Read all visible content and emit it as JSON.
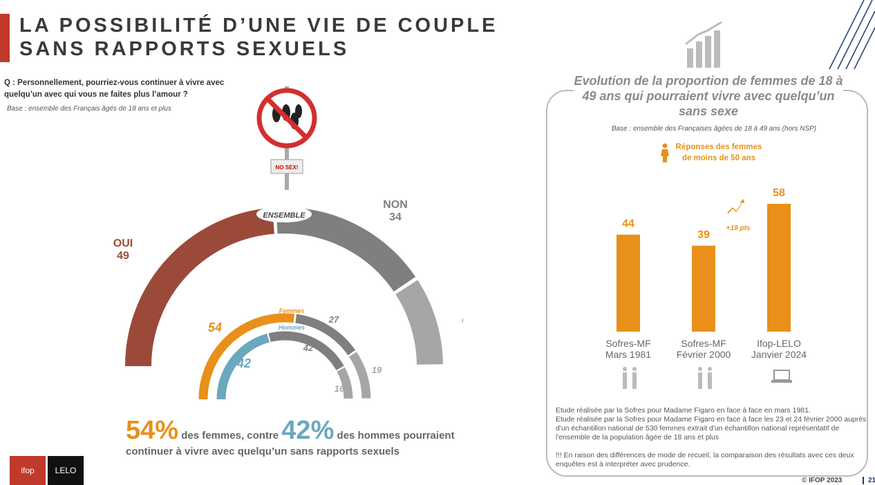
{
  "title": "LA POSSIBILITÉ D’UNE VIE DE COUPLE SANS RAPPORTS SEXUELS",
  "question": "Q : Personnellement, pourriez-vous continuer à vivre avec quelqu’un avec qui vous ne faites plus l’amour ?",
  "base": "Base : ensemble des Français âgés de 18 ans et plus",
  "sign_text": "NO SEX!",
  "chart_data": [
    {
      "type": "pie",
      "subtype": "half-donut",
      "title": "ENSEMBLE",
      "rings": [
        {
          "name": "ENSEMBLE",
          "labels": [
            "OUI",
            "NON",
            "Sans opinion"
          ],
          "values": [
            49,
            34,
            19
          ]
        },
        {
          "name": "Femmes",
          "labels": [
            "OUI",
            "NON",
            "Sans opinion"
          ],
          "values": [
            54,
            27,
            19
          ]
        },
        {
          "name": "Hommes",
          "labels": [
            "OUI",
            "NON",
            "Sans opinion"
          ],
          "values": [
            42,
            42,
            16
          ]
        }
      ],
      "colors": {
        "oui": "#9b4a3a",
        "non": "#7f7f7f",
        "sans": "#a6a6a6",
        "femmes": "#e8901a",
        "hommes": "#6aa8bd"
      },
      "label_text": {
        "oui": "OUI",
        "non": "NON",
        "sans": "Sans opinion",
        "femmes": "Femmes",
        "hommes": "Hommes"
      }
    },
    {
      "type": "bar",
      "title": "Evolution de la proportion de femmes de 18 à 49 ans qui pourraient vivre avec quelqu’un sans sexe",
      "categories": [
        "Sofres-MF Mars 1981",
        "Sofres-MF Février 2000",
        "Ifop-LELO Janvier 2024"
      ],
      "cat_lines": [
        [
          "Sofres-MF",
          "Mars 1981"
        ],
        [
          "Sofres-MF",
          "Février 2000"
        ],
        [
          "Ifop-LELO",
          "Janvier 2024"
        ]
      ],
      "values": [
        44,
        39,
        58
      ],
      "ylim": [
        0,
        60
      ],
      "color": "#e8901a",
      "annotation": "+19 pts",
      "base": "Base : ensemble des Françaises âgées de 18 à 49 ans  (hors NSP)",
      "legend": "Réponses des femmes de moins de 50 ans"
    }
  ],
  "summary": {
    "pct_f": "54%",
    "mid": "des femmes, contre",
    "pct_h": "42%",
    "end": "des hommes  pourraient",
    "line2": "continuer à vivre avec quelqu’un sans rapports sexuels"
  },
  "notes": [
    "Etude réalisée par la Sofres pour Madame Figaro en face à face en mars 1981.",
    "Etude réalisée par la Sofres pour Madame Figaro en face à face les 23 et 24 février 2000 auprès d'un échantillon national de 530 femmes extrait d'un échantillon national représentatif de l'ensemble de la population âgée de 18 ans et plus",
    "!!! En raison des différences de mode de recueil, la comparaison des résultats avec ces deux enquêtes est à interpréter avec prudence."
  ],
  "footer": "© IFOP 2023",
  "page": "21",
  "logos": [
    "ifop",
    "LELO"
  ]
}
